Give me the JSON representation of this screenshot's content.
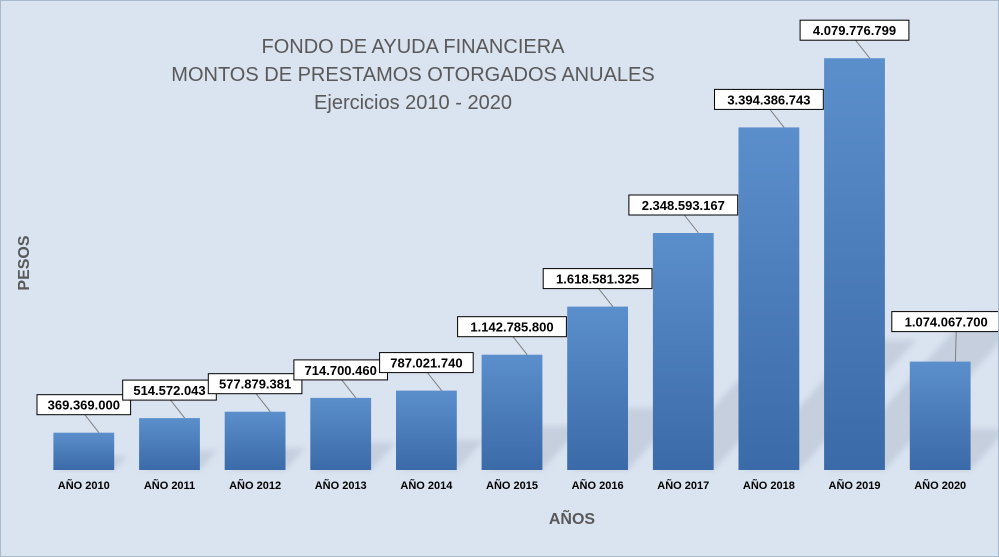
{
  "chart_data": {
    "type": "bar",
    "title": [
      "FONDO DE AYUDA FINANCIERA",
      "MONTOS DE PRESTAMOS OTORGADOS ANUALES",
      "Ejercicios 2010 - 2020"
    ],
    "xlabel": "AÑOS",
    "ylabel": "PESOS",
    "categories": [
      "AÑO 2010",
      "AÑO 2011",
      "AÑO 2012",
      "AÑO 2013",
      "AÑO 2014",
      "AÑO 2015",
      "AÑO 2016",
      "AÑO 2017",
      "AÑO 2018",
      "AÑO 2019",
      "AÑO 2020"
    ],
    "values": [
      369369000,
      514572043,
      577879381,
      714700460,
      787021740,
      1142785800,
      1618581325,
      2348593167,
      3394386743,
      4079776799,
      1074067700
    ],
    "value_labels": [
      "369.369.000",
      "514.572.043",
      "577.879.381",
      "714.700.460",
      "787.021.740",
      "1.142.785.800",
      "1.618.581.325",
      "2.348.593.167",
      "3.394.386.743",
      "4.079.776.799",
      "1.074.067.700"
    ],
    "ylim": [
      0,
      4300000000
    ],
    "grid": false,
    "legend": "none",
    "colors": {
      "background": "#dae3f0",
      "bar_top": "#5b8fcc",
      "bar_bottom": "#3b6aa8",
      "shadow": "#b4c0d0"
    }
  }
}
